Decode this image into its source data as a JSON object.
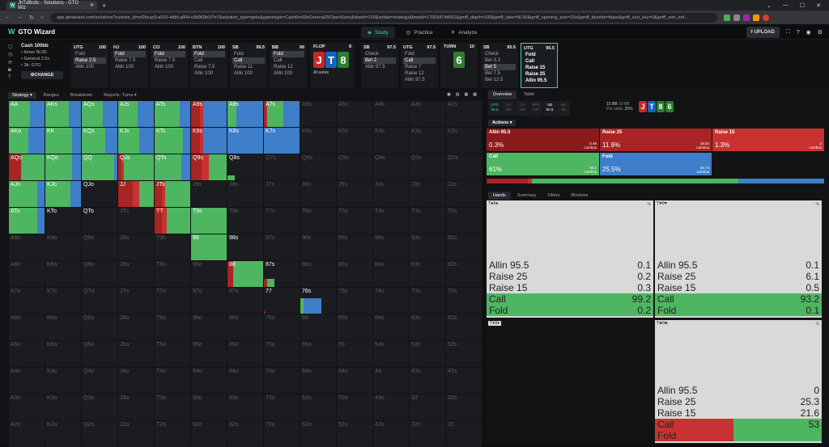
{
  "browser": {
    "tab_title": "JhTdBc8c - Solutions - GTO Wiz",
    "url": "app.gtowizard.com/solutions?custree_id=ef2bcac5-a510-4dbf-a804-c8d960b1f7e7&solution_type=gwiz&gametype=Cash6m50zGeneral25OpenSizes&depth=100&soltab=strategy&bmpld=17003474d031&gmff_depth=100&gmff_rake=NL50&gmff_opening_size=25x&gmff_favorite=false&gmff_sort_key=0&gmff_sort_ord..."
  },
  "app": {
    "name": "GTO Wizard",
    "nav": [
      "Study",
      "Practice",
      "Analyze"
    ],
    "upload": "UPLOAD"
  },
  "config": {
    "title": "Cash 100bb",
    "lines": [
      "6max NL50",
      "General 2.5x",
      "3b: GTO"
    ],
    "change": "CHANGE"
  },
  "columns": [
    {
      "pos": "UTG",
      "stack": "100",
      "opts": [
        "Fold",
        "Raise 2.5",
        "Allin 100"
      ],
      "sel": 1
    },
    {
      "pos": "HJ",
      "stack": "100",
      "opts": [
        "Fold",
        "Raise 7.5",
        "Allin 100"
      ],
      "sel": 0
    },
    {
      "pos": "CO",
      "stack": "100",
      "opts": [
        "Fold",
        "Raise 7.5",
        "Allin 100"
      ],
      "sel": 0
    },
    {
      "pos": "BTN",
      "stack": "100",
      "opts": [
        "Fold",
        "Call",
        "Raise 7.5",
        "Allin 100"
      ],
      "sel": 0
    },
    {
      "pos": "SB",
      "stack": "99.5",
      "opts": [
        "Fold",
        "Call",
        "Raise 11",
        "Allin 100"
      ],
      "sel": 1
    },
    {
      "pos": "BB",
      "stack": "99",
      "opts": [
        "Fold",
        "Call",
        "Raise 12",
        "Allin 100"
      ],
      "sel": 0
    }
  ],
  "flop": {
    "label": "FLOP",
    "pot": "8",
    "cards": [
      "J",
      "T",
      "8"
    ],
    "ai": "AI solve"
  },
  "col_sb2": {
    "pos": "SB",
    "stack": "97.5",
    "opts": [
      "Check",
      "Bet 2",
      "Allin 97.5"
    ],
    "sel": 1
  },
  "col_utg2": {
    "pos": "UTG",
    "stack": "97.5",
    "opts": [
      "Fold",
      "Call",
      "Raise 7",
      "Raise 12",
      "Allin 97.5"
    ],
    "sel": 1
  },
  "turn": {
    "label": "TURN",
    "pot": "10",
    "card": "6"
  },
  "col_sb3": {
    "pos": "SB",
    "stack": "95.5",
    "opts": [
      "Check",
      "Bet 3.3",
      "Bet 5",
      "Bet 7.5",
      "Bet 12.5"
    ],
    "sel": 2
  },
  "col_utg3": {
    "pos": "UTG",
    "stack": "95.5",
    "opts": [
      "Fold",
      "Call",
      "Raise 15",
      "Raise 25",
      "Allin 95.5"
    ]
  },
  "subtabs": [
    "Strategy",
    "Ranges",
    "Breakdown",
    "Reports: Turns"
  ],
  "grid": {
    "ranks": [
      "A",
      "K",
      "Q",
      "J",
      "T",
      "9",
      "8",
      "7",
      "6",
      "5",
      "4",
      "3",
      "2"
    ]
  },
  "right": {
    "tabs": [
      "Overview",
      "Table"
    ],
    "mini": [
      {
        "p": "UTG",
        "s": "95.5"
      },
      {
        "p": "HJ",
        "s": "100"
      },
      {
        "p": "CO",
        "s": "100"
      },
      {
        "p": "BTN",
        "s": "100"
      },
      {
        "p": "SB",
        "s": "90.5"
      },
      {
        "p": "BB",
        "s": "99"
      }
    ],
    "pot": "15 BB",
    "pot2": "10 BB",
    "odds_label": "Pot odds:",
    "odds": "25%",
    "board": [
      "J",
      "T",
      "8",
      "6"
    ],
    "actions_label": "Actions",
    "actions": [
      {
        "name": "Allin 95.5",
        "pct": "0.3%",
        "combos": "0.48",
        "color": "#8b1a1a"
      },
      {
        "name": "Raise 25",
        "pct": "11.9%",
        "combos": "18.52",
        "color": "#a92424"
      },
      {
        "name": "Raise 15",
        "pct": "1.3%",
        "combos": "2",
        "color": "#c93232"
      },
      {
        "name": "Call",
        "pct": "61%",
        "combos": "95.1",
        "color": "#4eb560"
      },
      {
        "name": "Fold",
        "pct": "25.5%",
        "combos": "39.73",
        "color": "#3f7ec9"
      }
    ],
    "combos_word": "combos",
    "htabs": [
      "Hands",
      "Summary",
      "Filters",
      "Blockers"
    ],
    "hands": [
      {
        "name": "T♠9♠",
        "vals": [
          "0.1",
          "0.2",
          "0.3",
          "99.2",
          "0.2"
        ]
      },
      {
        "name": "T♥9♥",
        "vals": [
          "0.1",
          "6.1",
          "0.5",
          "93.2",
          "0.1"
        ]
      },
      {
        "name": "T♦9♦",
        "vals": []
      },
      {
        "name": "T♣9♣",
        "vals": [
          "0",
          "25.3",
          "21.6",
          "53",
          ""
        ]
      }
    ],
    "rowlabels": [
      "Allin 95.5",
      "Raise 25",
      "Raise 15",
      "Call",
      "Fold"
    ]
  }
}
